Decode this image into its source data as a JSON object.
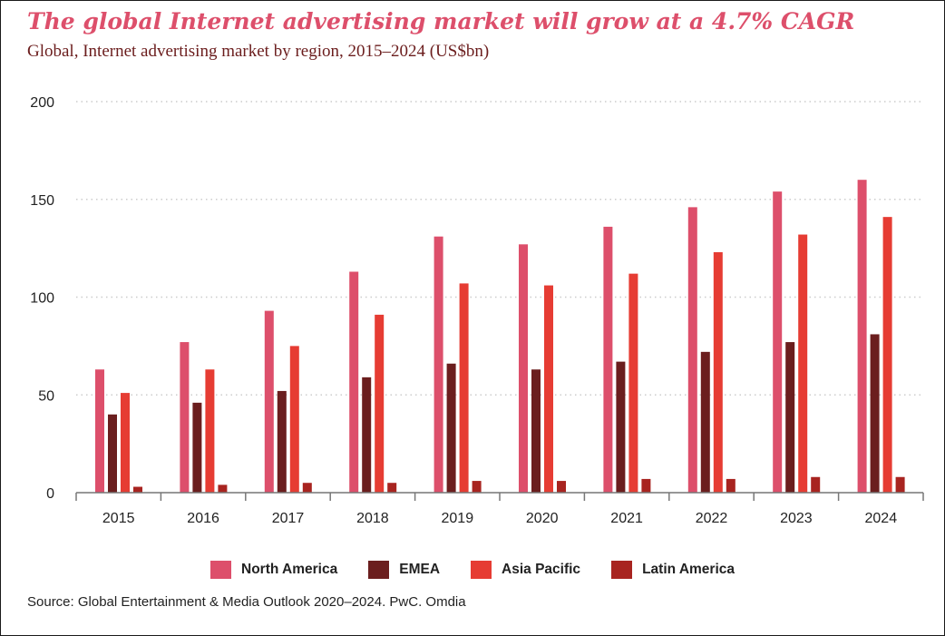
{
  "title": "The global Internet advertising market will grow at a 4.7% CAGR",
  "subtitle": "Global, Internet advertising market by region, 2015–2024 (US$bn)",
  "source": "Source: Global Entertainment & Media Outlook 2020–2024. PwC. Omdia",
  "colors": {
    "north_america": "#dd4f6b",
    "emea": "#6b1e1e",
    "asia_pacific": "#e63c33",
    "latin_america": "#a82420",
    "grid": "#cccccc",
    "axis": "#777777"
  },
  "chart_data": {
    "type": "bar",
    "title": "Global, Internet advertising market by region, 2015–2024 (US$bn)",
    "xlabel": "",
    "ylabel": "",
    "ylim": [
      0,
      200
    ],
    "yticks": [
      0,
      50,
      100,
      150,
      200
    ],
    "grid": true,
    "legend_position": "bottom",
    "categories": [
      "2015",
      "2016",
      "2017",
      "2018",
      "2019",
      "2020",
      "2021",
      "2022",
      "2023",
      "2024"
    ],
    "series": [
      {
        "name": "North America",
        "color": "#dd4f6b",
        "values": [
          63,
          77,
          93,
          113,
          131,
          127,
          136,
          146,
          154,
          160
        ]
      },
      {
        "name": "EMEA",
        "color": "#6b1e1e",
        "values": [
          40,
          46,
          52,
          59,
          66,
          63,
          67,
          72,
          77,
          81
        ]
      },
      {
        "name": "Asia Pacific",
        "color": "#e63c33",
        "values": [
          51,
          63,
          75,
          91,
          107,
          106,
          112,
          123,
          132,
          141
        ]
      },
      {
        "name": "Latin America",
        "color": "#a82420",
        "values": [
          3,
          4,
          5,
          5,
          6,
          6,
          7,
          7,
          8,
          8
        ]
      }
    ]
  }
}
